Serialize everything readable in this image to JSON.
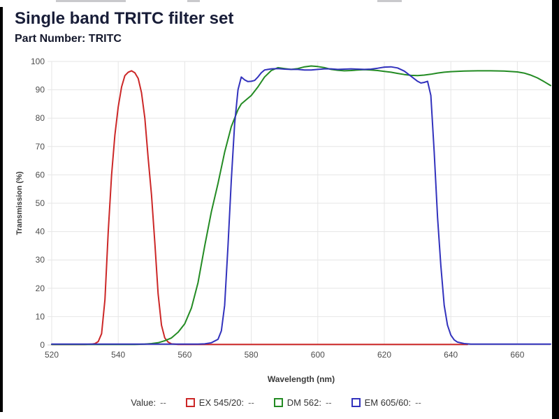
{
  "page": {
    "title": "Single band TRITC filter set",
    "subtitle": "Part Number: TRITC"
  },
  "chart_data": {
    "type": "line",
    "title": "Single band TRITC filter set",
    "xlabel": "Wavelength (nm)",
    "ylabel": "Transmission (%)",
    "xlim": [
      520,
      670
    ],
    "ylim": [
      0,
      100
    ],
    "x_ticks": [
      520,
      540,
      560,
      580,
      600,
      620,
      640,
      660
    ],
    "y_ticks": [
      0,
      10,
      20,
      30,
      40,
      50,
      60,
      70,
      80,
      90,
      100
    ],
    "grid": true,
    "legend_position": "bottom",
    "series": [
      {
        "name": "EX 545/20",
        "color": "#cc2727",
        "points": [
          [
            520,
            0.2
          ],
          [
            526,
            0.2
          ],
          [
            530,
            0.2
          ],
          [
            532,
            0.3
          ],
          [
            533,
            0.5
          ],
          [
            534,
            1.2
          ],
          [
            535,
            4
          ],
          [
            536,
            16
          ],
          [
            537,
            40
          ],
          [
            538,
            60
          ],
          [
            539,
            74
          ],
          [
            540,
            84
          ],
          [
            541,
            91
          ],
          [
            542,
            95
          ],
          [
            543,
            96.2
          ],
          [
            544,
            96.7
          ],
          [
            545,
            96
          ],
          [
            546,
            94
          ],
          [
            547,
            89
          ],
          [
            548,
            80
          ],
          [
            549,
            66
          ],
          [
            550,
            53
          ],
          [
            551,
            36
          ],
          [
            552,
            18
          ],
          [
            553,
            7
          ],
          [
            554,
            2.5
          ],
          [
            555,
            1
          ],
          [
            556,
            0.4
          ],
          [
            558,
            0.2
          ],
          [
            560,
            0.2
          ],
          [
            570,
            0.2
          ],
          [
            580,
            0.2
          ],
          [
            600,
            0.2
          ],
          [
            620,
            0.2
          ],
          [
            640,
            0.2
          ],
          [
            645,
            0.2
          ]
        ]
      },
      {
        "name": "DM 562",
        "color": "#238b23",
        "points": [
          [
            520,
            0.2
          ],
          [
            530,
            0.2
          ],
          [
            540,
            0.2
          ],
          [
            545,
            0.2
          ],
          [
            548,
            0.3
          ],
          [
            550,
            0.5
          ],
          [
            552,
            0.8
          ],
          [
            554,
            1.5
          ],
          [
            556,
            2.5
          ],
          [
            558,
            4.5
          ],
          [
            560,
            7.5
          ],
          [
            562,
            13
          ],
          [
            564,
            22
          ],
          [
            566,
            35
          ],
          [
            568,
            47
          ],
          [
            570,
            57
          ],
          [
            572,
            68
          ],
          [
            574,
            77
          ],
          [
            576,
            83
          ],
          [
            577,
            85
          ],
          [
            578,
            86
          ],
          [
            580,
            88
          ],
          [
            582,
            91
          ],
          [
            584,
            94.5
          ],
          [
            586,
            96.8
          ],
          [
            588,
            97.8
          ],
          [
            590,
            97.5
          ],
          [
            592,
            97.2
          ],
          [
            594,
            97.5
          ],
          [
            596,
            98.1
          ],
          [
            598,
            98.4
          ],
          [
            600,
            98.2
          ],
          [
            602,
            97.8
          ],
          [
            604,
            97.2
          ],
          [
            606,
            96.9
          ],
          [
            608,
            96.7
          ],
          [
            610,
            96.8
          ],
          [
            612,
            97
          ],
          [
            614,
            97.1
          ],
          [
            616,
            97
          ],
          [
            618,
            96.8
          ],
          [
            620,
            96.5
          ],
          [
            622,
            96.2
          ],
          [
            624,
            95.8
          ],
          [
            626,
            95.4
          ],
          [
            628,
            95.1
          ],
          [
            630,
            95
          ],
          [
            632,
            95.2
          ],
          [
            634,
            95.5
          ],
          [
            636,
            95.9
          ],
          [
            638,
            96.2
          ],
          [
            640,
            96.4
          ],
          [
            644,
            96.6
          ],
          [
            648,
            96.7
          ],
          [
            652,
            96.7
          ],
          [
            656,
            96.6
          ],
          [
            660,
            96.3
          ],
          [
            662,
            95.9
          ],
          [
            664,
            95.2
          ],
          [
            666,
            94.2
          ],
          [
            668,
            92.9
          ],
          [
            670,
            91.5
          ]
        ]
      },
      {
        "name": "EM 605/60",
        "color": "#3232bd",
        "points": [
          [
            520,
            0.3
          ],
          [
            540,
            0.3
          ],
          [
            560,
            0.3
          ],
          [
            564,
            0.3
          ],
          [
            566,
            0.4
          ],
          [
            568,
            0.8
          ],
          [
            570,
            2
          ],
          [
            571,
            5
          ],
          [
            572,
            14
          ],
          [
            573,
            35
          ],
          [
            574,
            58
          ],
          [
            575,
            78
          ],
          [
            576,
            90
          ],
          [
            577,
            94.5
          ],
          [
            578,
            93.5
          ],
          [
            579,
            92.9
          ],
          [
            580,
            93
          ],
          [
            581,
            93.3
          ],
          [
            582,
            94.5
          ],
          [
            583,
            96
          ],
          [
            584,
            97
          ],
          [
            586,
            97.4
          ],
          [
            588,
            97.5
          ],
          [
            590,
            97.3
          ],
          [
            592,
            97.2
          ],
          [
            594,
            97.2
          ],
          [
            596,
            97
          ],
          [
            598,
            97
          ],
          [
            600,
            97.2
          ],
          [
            602,
            97.4
          ],
          [
            604,
            97.4
          ],
          [
            606,
            97.2
          ],
          [
            608,
            97.3
          ],
          [
            610,
            97.4
          ],
          [
            612,
            97.3
          ],
          [
            614,
            97.2
          ],
          [
            616,
            97.3
          ],
          [
            618,
            97.6
          ],
          [
            620,
            98
          ],
          [
            622,
            98.1
          ],
          [
            624,
            97.7
          ],
          [
            626,
            96.6
          ],
          [
            628,
            94.8
          ],
          [
            630,
            93
          ],
          [
            631,
            92.4
          ],
          [
            632,
            92.6
          ],
          [
            633,
            93
          ],
          [
            634,
            88
          ],
          [
            635,
            68
          ],
          [
            636,
            45
          ],
          [
            637,
            28
          ],
          [
            638,
            14
          ],
          [
            639,
            7
          ],
          [
            640,
            3.5
          ],
          [
            641,
            1.8
          ],
          [
            642,
            1
          ],
          [
            644,
            0.5
          ],
          [
            646,
            0.3
          ],
          [
            650,
            0.3
          ],
          [
            660,
            0.3
          ],
          [
            670,
            0.3
          ]
        ]
      }
    ]
  },
  "axes": {
    "xlabel": "Wavelength (nm)",
    "ylabel": "Transmission (%)"
  },
  "legend": {
    "value_label": "Value:",
    "value_placeholder": "--",
    "items": [
      {
        "label": "EX 545/20:",
        "value": "--",
        "color": "#cc2727"
      },
      {
        "label": "DM 562:",
        "value": "--",
        "color": "#238b23"
      },
      {
        "label": "EM 605/60:",
        "value": "--",
        "color": "#3232bd"
      }
    ]
  },
  "colors": {
    "title_text": "#181d38",
    "tick_text": "#4d4d4d",
    "gridline": "#e6e6e6",
    "edge_strip": "#000000"
  }
}
